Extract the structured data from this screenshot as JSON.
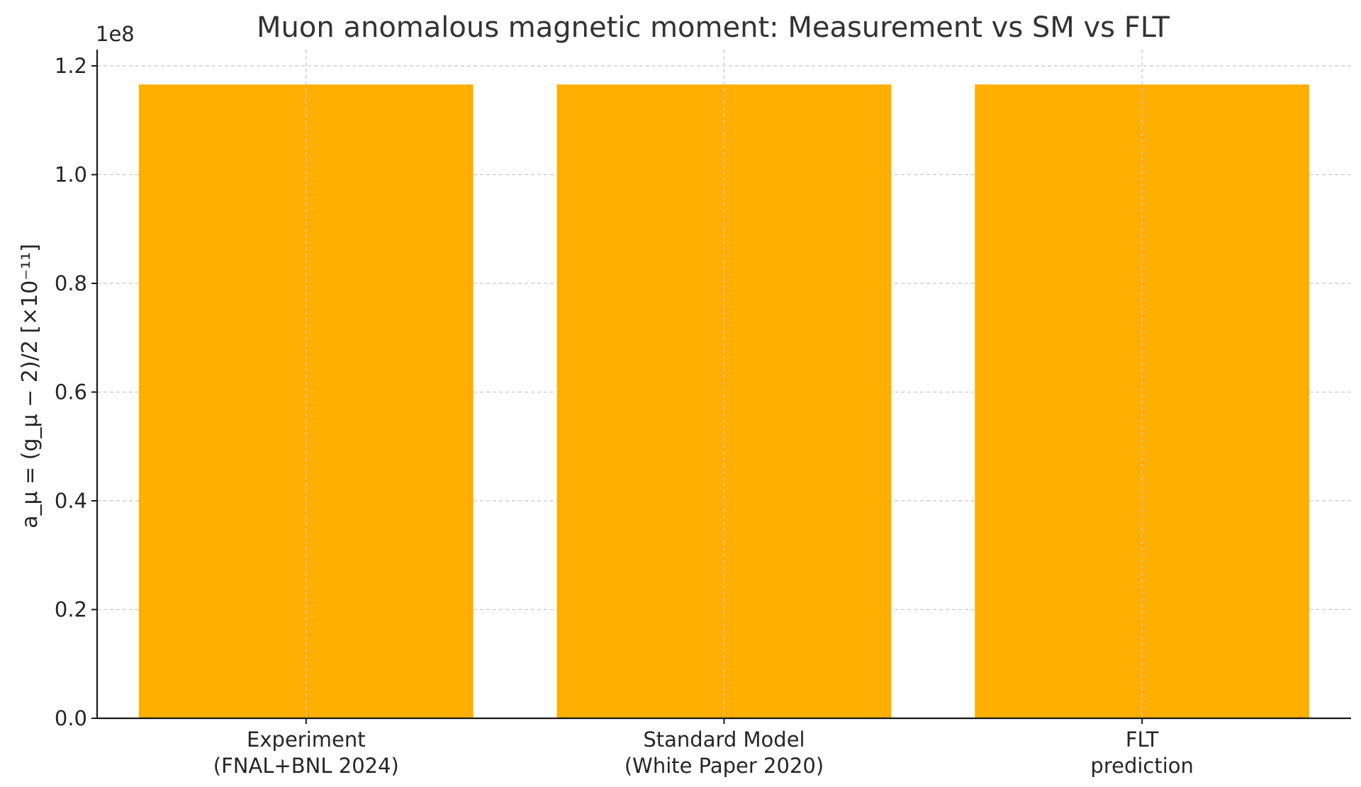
{
  "chart_data": {
    "type": "bar",
    "title": "Muon anomalous magnetic moment: Measurement vs SM vs FLT",
    "xlabel": "",
    "ylabel": "a_μ = (g_μ − 2)/2  [×10⁻¹¹]",
    "y_offset_label": "1e8",
    "ylim": [
      0,
      1.23
    ],
    "yticks": [
      0.0,
      0.2,
      0.4,
      0.6,
      0.8,
      1.0,
      1.2
    ],
    "ytick_labels": [
      "0.0",
      "0.2",
      "0.4",
      "0.6",
      "0.8",
      "1.0",
      "1.2"
    ],
    "categories": [
      [
        "Experiment",
        "(FNAL+BNL 2024)"
      ],
      [
        "Standard Model",
        "(White Paper 2020)"
      ],
      [
        "FLT",
        "prediction"
      ]
    ],
    "values": [
      1.1659,
      1.1659,
      1.1659
    ],
    "grid": true,
    "legend": "none",
    "bar_color": "#FFAE02"
  }
}
